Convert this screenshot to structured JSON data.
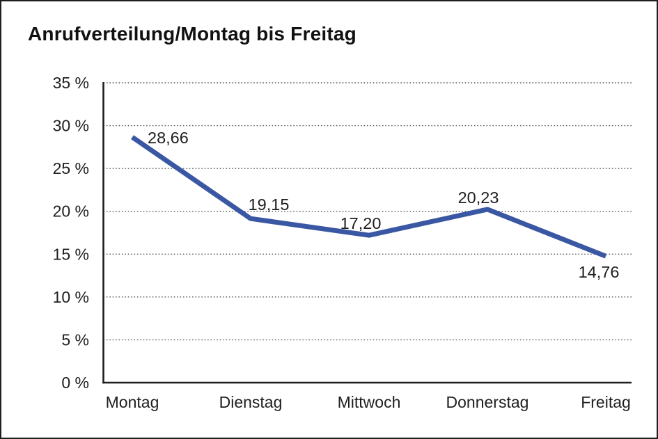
{
  "window": {
    "background": "#ffffff",
    "border_color": "#1f1f1f"
  },
  "chart_data": {
    "type": "line",
    "title": "Anrufverteilung/Montag bis Freitag",
    "categories": [
      "Montag",
      "Dienstag",
      "Mittwoch",
      "Donnerstag",
      "Freitag"
    ],
    "series": [
      {
        "name": "Anrufverteilung",
        "values": [
          28.66,
          19.15,
          17.2,
          20.23,
          14.76
        ]
      }
    ],
    "data_labels": [
      "28,66",
      "19,15",
      "17,20",
      "20,23",
      "14,76"
    ],
    "xlabel": "",
    "ylabel": "",
    "ylim": [
      0,
      35
    ],
    "y_ticks": [
      0,
      5,
      10,
      15,
      20,
      25,
      30,
      35
    ],
    "y_tick_labels": [
      "0 %",
      "5 %",
      "10 %",
      "15 %",
      "20 %",
      "25 %",
      "30 %",
      "35 %"
    ],
    "grid": "horizontal-dotted",
    "legend_position": "none",
    "colors": {
      "line": "#3A57A3",
      "axis": "#1f1f1f",
      "gridline": "#555555",
      "text": "#1e1e1e"
    }
  }
}
